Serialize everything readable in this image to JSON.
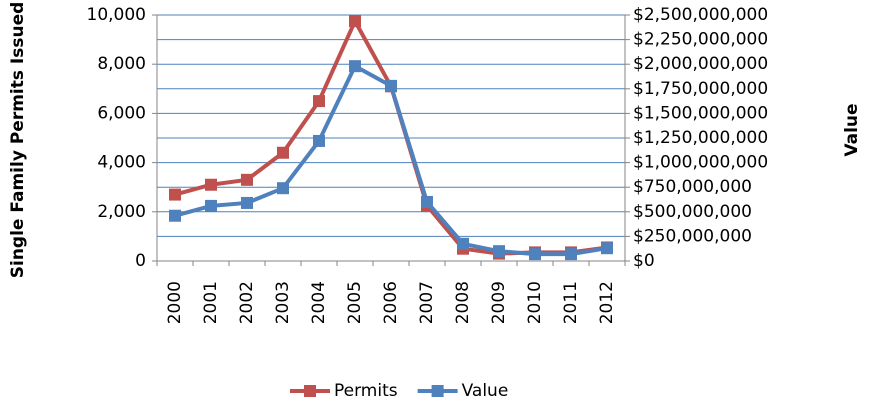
{
  "chart_data": {
    "type": "line",
    "y_label": "Single Family Permits Issued",
    "y2_label": "Value",
    "categories": [
      "2000",
      "2001",
      "2002",
      "2003",
      "2004",
      "2005",
      "2006",
      "2007",
      "2008",
      "2009",
      "2010",
      "2011",
      "2012"
    ],
    "series": [
      {
        "name": "Permits",
        "color": "#c0504d",
        "values": [
          2700,
          3100,
          3300,
          4400,
          6500,
          9750,
          7100,
          2250,
          500,
          300,
          350,
          350,
          550
        ]
      },
      {
        "name": "Value",
        "color": "#4f81bd",
        "axis": "y2",
        "values": [
          460000000,
          560000000,
          590000000,
          740000000,
          1220000000,
          1980000000,
          1780000000,
          600000000,
          175000000,
          100000000,
          70000000,
          70000000,
          130000000
        ]
      }
    ],
    "ylim": [
      0,
      10000
    ],
    "yticks": [
      0,
      {
        "value": 2000,
        "label": "2,000"
      },
      {
        "value": 4000,
        "label": "4,000"
      },
      {
        "value": 6000,
        "label": "6,000"
      },
      {
        "value": 8000,
        "label": "8,000"
      },
      {
        "value": 10000,
        "label": "10,000"
      }
    ],
    "y2lim": [
      0,
      2500000000
    ],
    "y2ticks": [
      {
        "value": 0,
        "label": "$0"
      },
      {
        "value": 250000000,
        "label": "$250,000,000"
      },
      {
        "value": 500000000,
        "label": "$500,000,000"
      },
      {
        "value": 750000000,
        "label": "$750,000,000"
      },
      {
        "value": 1000000000,
        "label": "$1,000,000,000"
      },
      {
        "value": 1250000000,
        "label": "$1,250,000,000"
      },
      {
        "value": 1500000000,
        "label": "$1,500,000,000"
      },
      {
        "value": 1750000000,
        "label": "$1,750,000,000"
      },
      {
        "value": 2000000000,
        "label": "$2,000,000,000"
      },
      {
        "value": 2250000000,
        "label": "$2,250,000,000"
      },
      {
        "value": 2500000000,
        "label": "$2,500,000,000"
      }
    ],
    "grid": "y2",
    "legend": "bottom"
  }
}
